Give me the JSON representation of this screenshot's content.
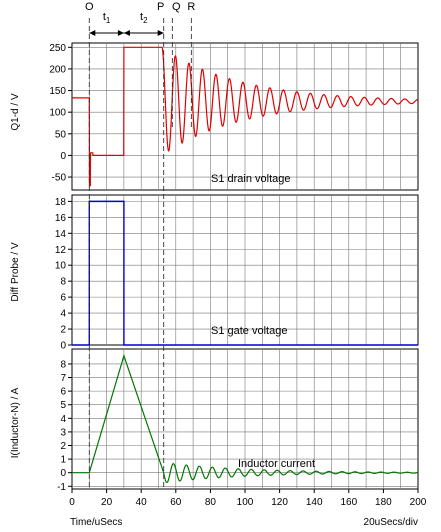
{
  "header": {
    "markers": [
      {
        "label": "O",
        "x": 10
      },
      {
        "label": "P",
        "x": 53
      },
      {
        "label": "Q",
        "x": 58
      },
      {
        "label": "R",
        "x": 69
      }
    ],
    "intervals": [
      {
        "label": "t",
        "sub": "1",
        "x0": 10,
        "x1": 30
      },
      {
        "label": "t",
        "sub": "2",
        "x0": 30,
        "x1": 53
      }
    ]
  },
  "footer": {
    "xlabel": "Time/uSecs",
    "xdiv": "20uSecs/div"
  },
  "chart_data": [
    {
      "type": "line",
      "name": "drain",
      "annotation": "S1 drain voltage",
      "ylabel": "Q1-d / V",
      "xlim": [
        0,
        200
      ],
      "ylim": [
        -80,
        260
      ],
      "yticks": [
        -50,
        0,
        50,
        100,
        150,
        200,
        250
      ],
      "grid": true,
      "series": [
        {
          "color": "#e00000",
          "kind": "drain"
        }
      ]
    },
    {
      "type": "line",
      "name": "gate",
      "annotation": "S1 gate voltage",
      "ylabel": "Diff Probe / V",
      "xlim": [
        0,
        200
      ],
      "ylim": [
        0,
        18.8
      ],
      "yticks": [
        0,
        2,
        4,
        6,
        8,
        10,
        12,
        14,
        16,
        18
      ],
      "grid": true,
      "series": [
        {
          "color": "#0000cc",
          "x": [
            0,
            10,
            10,
            30,
            30,
            200
          ],
          "y": [
            0,
            0,
            18,
            18,
            0,
            0
          ]
        }
      ]
    },
    {
      "type": "line",
      "name": "inductor",
      "annotation": "Inductor current",
      "ylabel": "I(Inductor-N) / A",
      "xlim": [
        0,
        200
      ],
      "ylim": [
        -1.2,
        9.1
      ],
      "yticks": [
        -1,
        0,
        1,
        2,
        3,
        4,
        5,
        6,
        7,
        8
      ],
      "xticks": [
        0,
        20,
        40,
        60,
        80,
        100,
        120,
        140,
        160,
        180,
        200
      ],
      "grid": true,
      "series": [
        {
          "color": "#007700",
          "kind": "inductor"
        }
      ]
    }
  ]
}
